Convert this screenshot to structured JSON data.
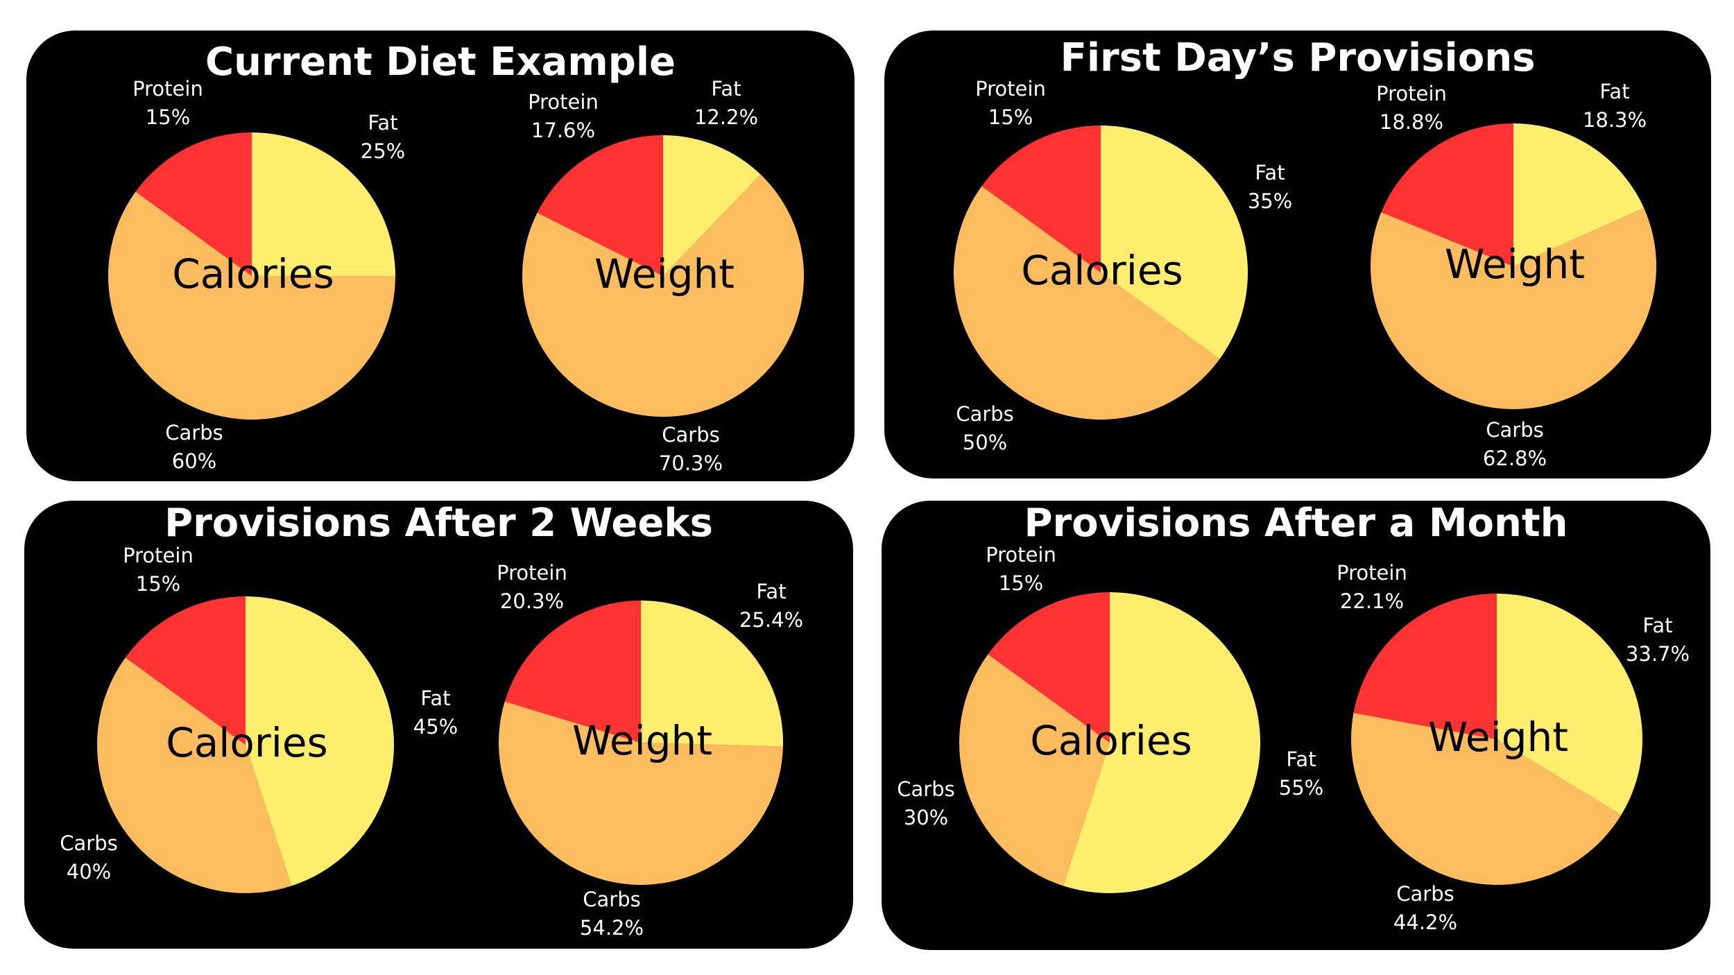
{
  "colors": {
    "panel_background": "#000000",
    "page_background": "#ffffff",
    "protein": "#ff3333",
    "fat": "#ffee6e",
    "carbs": "#fdbd5e",
    "text_on_panel": "#ffffff",
    "text_on_pie": "#000000"
  },
  "chart_data": [
    {
      "type": "pie",
      "title": "Current Diet Example",
      "pies": [
        {
          "center_label": "Calories",
          "slices": [
            {
              "name": "Fat",
              "value": 25,
              "label": "25%"
            },
            {
              "name": "Carbs",
              "value": 60,
              "label": "60%"
            },
            {
              "name": "Protein",
              "value": 15,
              "label": "15%"
            }
          ]
        },
        {
          "center_label": "Weight",
          "slices": [
            {
              "name": "Fat",
              "value": 12.2,
              "label": "12.2%"
            },
            {
              "name": "Carbs",
              "value": 70.3,
              "label": "70.3%"
            },
            {
              "name": "Protein",
              "value": 17.6,
              "label": "17.6%"
            }
          ]
        }
      ]
    },
    {
      "type": "pie",
      "title": "First Day’s Provisions",
      "pies": [
        {
          "center_label": "Calories",
          "slices": [
            {
              "name": "Fat",
              "value": 35,
              "label": "35%"
            },
            {
              "name": "Carbs",
              "value": 50,
              "label": "50%"
            },
            {
              "name": "Protein",
              "value": 15,
              "label": "15%"
            }
          ]
        },
        {
          "center_label": "Weight",
          "slices": [
            {
              "name": "Fat",
              "value": 18.3,
              "label": "18.3%"
            },
            {
              "name": "Carbs",
              "value": 62.8,
              "label": "62.8%"
            },
            {
              "name": "Protein",
              "value": 18.8,
              "label": "18.8%"
            }
          ]
        }
      ]
    },
    {
      "type": "pie",
      "title": "Provisions After 2 Weeks",
      "pies": [
        {
          "center_label": "Calories",
          "slices": [
            {
              "name": "Fat",
              "value": 45,
              "label": "45%"
            },
            {
              "name": "Carbs",
              "value": 40,
              "label": "40%"
            },
            {
              "name": "Protein",
              "value": 15,
              "label": "15%"
            }
          ]
        },
        {
          "center_label": "Weight",
          "slices": [
            {
              "name": "Fat",
              "value": 25.4,
              "label": "25.4%"
            },
            {
              "name": "Carbs",
              "value": 54.2,
              "label": "54.2%"
            },
            {
              "name": "Protein",
              "value": 20.3,
              "label": "20.3%"
            }
          ]
        }
      ]
    },
    {
      "type": "pie",
      "title": "Provisions After a Month",
      "pies": [
        {
          "center_label": "Calories",
          "slices": [
            {
              "name": "Fat",
              "value": 55,
              "label": "55%"
            },
            {
              "name": "Carbs",
              "value": 30,
              "label": "30%"
            },
            {
              "name": "Protein",
              "value": 15,
              "label": "15%"
            }
          ]
        },
        {
          "center_label": "Weight",
          "slices": [
            {
              "name": "Fat",
              "value": 33.7,
              "label": "33.7%"
            },
            {
              "name": "Carbs",
              "value": 44.2,
              "label": "44.2%"
            },
            {
              "name": "Protein",
              "value": 22.1,
              "label": "22.1%"
            }
          ]
        }
      ]
    }
  ]
}
